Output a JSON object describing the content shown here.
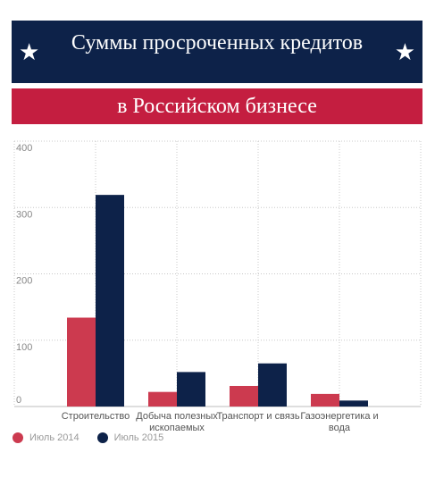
{
  "header": {
    "title": "Суммы просроченных кредитов",
    "subtitle": "в Российском бизнесе",
    "star_icon": "star-icon",
    "colors": {
      "top": "#0d2249",
      "sub": "#c41e40"
    }
  },
  "chart_data": {
    "type": "bar",
    "categories": [
      "Строительство",
      "Добыча полезных ископаемых",
      "Транспорт и связь",
      "Газоэнергетика и вода"
    ],
    "series": [
      {
        "name": "Июль 2014",
        "color": "#cc3a4f",
        "values": [
          134,
          22,
          31,
          19
        ]
      },
      {
        "name": "Июль 2015",
        "color": "#0d2249",
        "values": [
          319,
          52,
          65,
          9
        ]
      }
    ],
    "ylim": [
      0,
      400
    ],
    "yticks": [
      0,
      100,
      200,
      300,
      400
    ],
    "grid": true,
    "legend": "bottom-left"
  }
}
